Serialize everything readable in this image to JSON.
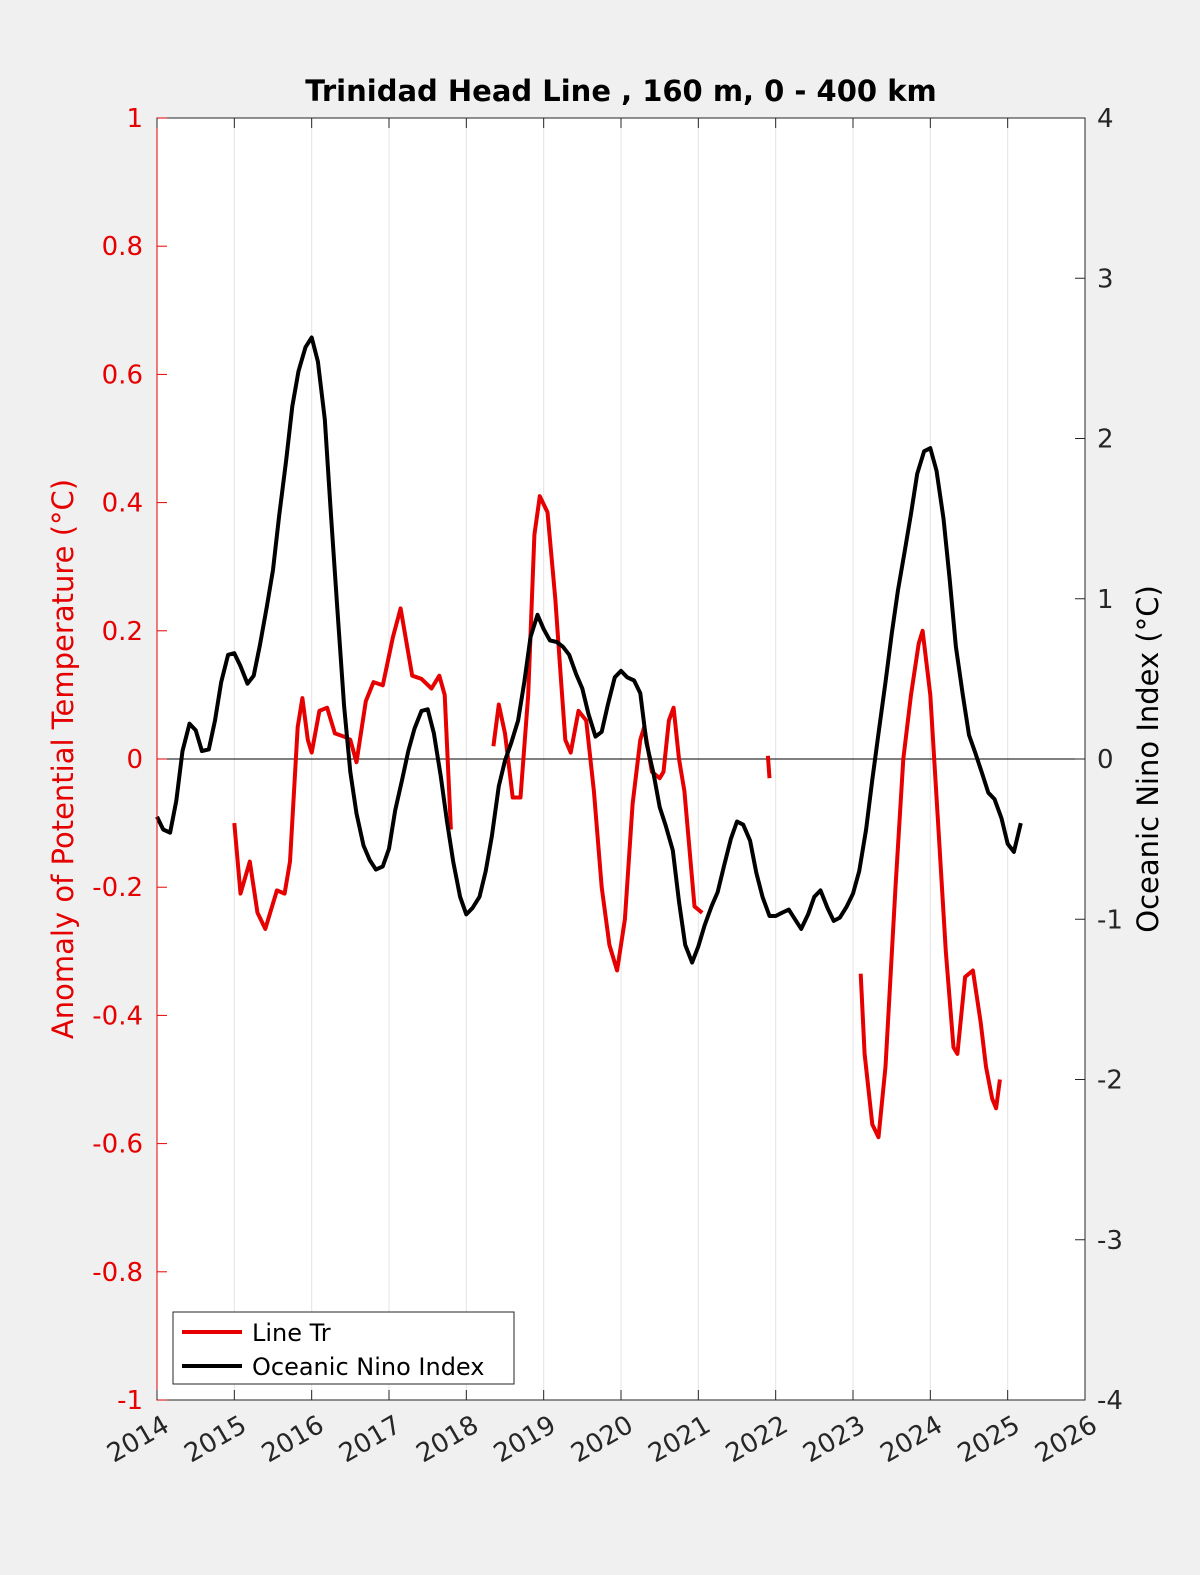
{
  "chart_data": {
    "type": "line",
    "title": "Trinidad Head Line , 160 m, 0 - 400 km",
    "ylabel": "Anomaly of Potential Temperature (°C)",
    "ylabel_right": "Oceanic Nino Index (°C)",
    "xlim": [
      2014,
      2026
    ],
    "ylim": [
      -1,
      1
    ],
    "ylim_right": [
      -4,
      4
    ],
    "x_ticks": [
      "2014",
      "2015",
      "2016",
      "2017",
      "2018",
      "2019",
      "2020",
      "2021",
      "2022",
      "2023",
      "2024",
      "2025",
      "2026"
    ],
    "y_ticks": [
      "1",
      "0.8",
      "0.6",
      "0.4",
      "0.2",
      "0",
      "-0.2",
      "-0.4",
      "-0.6",
      "-0.8",
      "-1"
    ],
    "y_ticks_right": [
      "4",
      "3",
      "2",
      "1",
      "0",
      "-1",
      "-2",
      "-3",
      "-4"
    ],
    "grid": "vertical",
    "legend_position": "bottom-left",
    "colors": {
      "line_tr": "#e60000",
      "oni": "#000000",
      "left_axis": "#e60000"
    },
    "series": [
      {
        "name": "Line Tr",
        "axis": "left",
        "segments": [
          [
            [
              2015.0,
              -0.1
            ],
            [
              2015.08,
              -0.21
            ],
            [
              2015.2,
              -0.16
            ],
            [
              2015.3,
              -0.24
            ],
            [
              2015.4,
              -0.265
            ],
            [
              2015.55,
              -0.205
            ],
            [
              2015.65,
              -0.21
            ],
            [
              2015.72,
              -0.16
            ],
            [
              2015.82,
              0.05
            ],
            [
              2015.88,
              0.095
            ],
            [
              2015.95,
              0.03
            ],
            [
              2016.0,
              0.01
            ],
            [
              2016.1,
              0.075
            ],
            [
              2016.2,
              0.08
            ],
            [
              2016.3,
              0.04
            ],
            [
              2016.42,
              0.035
            ],
            [
              2016.5,
              0.03
            ],
            [
              2016.58,
              -0.005
            ],
            [
              2016.7,
              0.09
            ],
            [
              2016.8,
              0.12
            ],
            [
              2016.92,
              0.115
            ],
            [
              2017.05,
              0.19
            ],
            [
              2017.15,
              0.235
            ],
            [
              2017.3,
              0.13
            ],
            [
              2017.42,
              0.125
            ],
            [
              2017.55,
              0.11
            ],
            [
              2017.65,
              0.13
            ],
            [
              2017.72,
              0.1
            ],
            [
              2017.8,
              -0.11
            ]
          ],
          [
            [
              2018.35,
              0.02
            ],
            [
              2018.42,
              0.085
            ],
            [
              2018.5,
              0.04
            ],
            [
              2018.6,
              -0.06
            ],
            [
              2018.7,
              -0.06
            ],
            [
              2018.8,
              0.1
            ],
            [
              2018.88,
              0.35
            ],
            [
              2018.95,
              0.41
            ],
            [
              2019.05,
              0.385
            ],
            [
              2019.15,
              0.25
            ],
            [
              2019.22,
              0.13
            ],
            [
              2019.28,
              0.03
            ],
            [
              2019.35,
              0.01
            ],
            [
              2019.45,
              0.075
            ],
            [
              2019.55,
              0.06
            ],
            [
              2019.65,
              -0.05
            ],
            [
              2019.75,
              -0.2
            ],
            [
              2019.85,
              -0.29
            ],
            [
              2019.95,
              -0.33
            ],
            [
              2020.05,
              -0.25
            ],
            [
              2020.15,
              -0.07
            ],
            [
              2020.25,
              0.03
            ],
            [
              2020.3,
              0.05
            ],
            [
              2020.4,
              -0.02
            ],
            [
              2020.5,
              -0.03
            ],
            [
              2020.55,
              -0.02
            ],
            [
              2020.62,
              0.06
            ],
            [
              2020.68,
              0.08
            ],
            [
              2020.75,
              0.0
            ],
            [
              2020.82,
              -0.05
            ],
            [
              2020.95,
              -0.23
            ],
            [
              2021.05,
              -0.24
            ]
          ],
          [
            [
              2021.9,
              0.005
            ],
            [
              2021.92,
              -0.03
            ]
          ],
          [
            [
              2023.1,
              -0.335
            ],
            [
              2023.15,
              -0.46
            ],
            [
              2023.25,
              -0.57
            ],
            [
              2023.33,
              -0.59
            ],
            [
              2023.42,
              -0.48
            ],
            [
              2023.55,
              -0.2
            ],
            [
              2023.65,
              0.0
            ],
            [
              2023.75,
              0.1
            ],
            [
              2023.85,
              0.18
            ],
            [
              2023.9,
              0.2
            ],
            [
              2024.0,
              0.1
            ],
            [
              2024.1,
              -0.1
            ],
            [
              2024.2,
              -0.3
            ],
            [
              2024.3,
              -0.45
            ],
            [
              2024.35,
              -0.46
            ],
            [
              2024.45,
              -0.34
            ],
            [
              2024.55,
              -0.33
            ],
            [
              2024.65,
              -0.41
            ],
            [
              2024.72,
              -0.48
            ],
            [
              2024.8,
              -0.53
            ],
            [
              2024.85,
              -0.545
            ],
            [
              2024.9,
              -0.5
            ]
          ]
        ]
      },
      {
        "name": "Oceanic Nino Index",
        "axis": "right",
        "segments": [
          [
            [
              2014.0,
              -0.36
            ],
            [
              2014.08,
              -0.44
            ],
            [
              2014.17,
              -0.46
            ],
            [
              2014.25,
              -0.26
            ],
            [
              2014.33,
              0.05
            ],
            [
              2014.42,
              0.22
            ],
            [
              2014.5,
              0.18
            ],
            [
              2014.58,
              0.05
            ],
            [
              2014.67,
              0.06
            ],
            [
              2014.75,
              0.24
            ],
            [
              2014.83,
              0.48
            ],
            [
              2014.92,
              0.65
            ],
            [
              2015.0,
              0.66
            ],
            [
              2015.08,
              0.58
            ],
            [
              2015.17,
              0.47
            ],
            [
              2015.25,
              0.52
            ],
            [
              2015.33,
              0.71
            ],
            [
              2015.42,
              0.95
            ],
            [
              2015.5,
              1.18
            ],
            [
              2015.58,
              1.52
            ],
            [
              2015.67,
              1.86
            ],
            [
              2015.75,
              2.2
            ],
            [
              2015.83,
              2.42
            ],
            [
              2015.92,
              2.57
            ],
            [
              2016.0,
              2.63
            ],
            [
              2016.08,
              2.48
            ],
            [
              2016.17,
              2.12
            ],
            [
              2016.25,
              1.52
            ],
            [
              2016.33,
              0.95
            ],
            [
              2016.42,
              0.33
            ],
            [
              2016.5,
              -0.08
            ],
            [
              2016.58,
              -0.34
            ],
            [
              2016.67,
              -0.54
            ],
            [
              2016.75,
              -0.63
            ],
            [
              2016.83,
              -0.69
            ],
            [
              2016.92,
              -0.67
            ],
            [
              2017.0,
              -0.56
            ],
            [
              2017.08,
              -0.32
            ],
            [
              2017.17,
              -0.13
            ],
            [
              2017.25,
              0.05
            ],
            [
              2017.33,
              0.19
            ],
            [
              2017.42,
              0.3
            ],
            [
              2017.5,
              0.31
            ],
            [
              2017.58,
              0.16
            ],
            [
              2017.67,
              -0.11
            ],
            [
              2017.75,
              -0.39
            ],
            [
              2017.83,
              -0.64
            ],
            [
              2017.92,
              -0.86
            ],
            [
              2018.0,
              -0.97
            ],
            [
              2018.08,
              -0.93
            ],
            [
              2018.17,
              -0.86
            ],
            [
              2018.25,
              -0.7
            ],
            [
              2018.33,
              -0.48
            ],
            [
              2018.42,
              -0.17
            ],
            [
              2018.5,
              -0.01
            ],
            [
              2018.58,
              0.1
            ],
            [
              2018.67,
              0.24
            ],
            [
              2018.75,
              0.48
            ],
            [
              2018.83,
              0.76
            ],
            [
              2018.92,
              0.9
            ],
            [
              2019.0,
              0.81
            ],
            [
              2019.08,
              0.74
            ],
            [
              2019.17,
              0.73
            ],
            [
              2019.25,
              0.7
            ],
            [
              2019.33,
              0.65
            ],
            [
              2019.42,
              0.53
            ],
            [
              2019.5,
              0.44
            ],
            [
              2019.58,
              0.28
            ],
            [
              2019.67,
              0.14
            ],
            [
              2019.75,
              0.17
            ],
            [
              2019.83,
              0.34
            ],
            [
              2019.92,
              0.51
            ],
            [
              2020.0,
              0.55
            ],
            [
              2020.08,
              0.51
            ],
            [
              2020.17,
              0.49
            ],
            [
              2020.25,
              0.41
            ],
            [
              2020.33,
              0.1
            ],
            [
              2020.42,
              -0.09
            ],
            [
              2020.5,
              -0.3
            ],
            [
              2020.58,
              -0.42
            ],
            [
              2020.67,
              -0.57
            ],
            [
              2020.75,
              -0.89
            ],
            [
              2020.83,
              -1.16
            ],
            [
              2020.92,
              -1.27
            ],
            [
              2021.0,
              -1.17
            ],
            [
              2021.08,
              -1.04
            ],
            [
              2021.17,
              -0.92
            ],
            [
              2021.25,
              -0.83
            ],
            [
              2021.33,
              -0.67
            ],
            [
              2021.42,
              -0.5
            ],
            [
              2021.5,
              -0.39
            ],
            [
              2021.58,
              -0.41
            ],
            [
              2021.67,
              -0.51
            ],
            [
              2021.75,
              -0.71
            ],
            [
              2021.83,
              -0.86
            ],
            [
              2021.92,
              -0.98
            ],
            [
              2022.0,
              -0.98
            ],
            [
              2022.08,
              -0.96
            ],
            [
              2022.17,
              -0.94
            ],
            [
              2022.25,
              -1.0
            ],
            [
              2022.33,
              -1.06
            ],
            [
              2022.42,
              -0.97
            ],
            [
              2022.5,
              -0.86
            ],
            [
              2022.58,
              -0.82
            ],
            [
              2022.67,
              -0.93
            ],
            [
              2022.75,
              -1.01
            ],
            [
              2022.83,
              -0.99
            ],
            [
              2022.92,
              -0.92
            ],
            [
              2023.0,
              -0.84
            ],
            [
              2023.08,
              -0.7
            ],
            [
              2023.17,
              -0.44
            ],
            [
              2023.25,
              -0.13
            ],
            [
              2023.33,
              0.16
            ],
            [
              2023.42,
              0.48
            ],
            [
              2023.5,
              0.78
            ],
            [
              2023.58,
              1.05
            ],
            [
              2023.67,
              1.3
            ],
            [
              2023.75,
              1.53
            ],
            [
              2023.83,
              1.78
            ],
            [
              2023.92,
              1.92
            ],
            [
              2024.0,
              1.94
            ],
            [
              2024.08,
              1.8
            ],
            [
              2024.17,
              1.5
            ],
            [
              2024.25,
              1.12
            ],
            [
              2024.33,
              0.7
            ],
            [
              2024.42,
              0.4
            ],
            [
              2024.5,
              0.15
            ],
            [
              2024.58,
              0.04
            ],
            [
              2024.67,
              -0.09
            ],
            [
              2024.75,
              -0.21
            ],
            [
              2024.83,
              -0.25
            ],
            [
              2024.92,
              -0.37
            ],
            [
              2025.0,
              -0.53
            ],
            [
              2025.08,
              -0.58
            ],
            [
              2025.17,
              -0.4
            ]
          ]
        ]
      }
    ]
  }
}
